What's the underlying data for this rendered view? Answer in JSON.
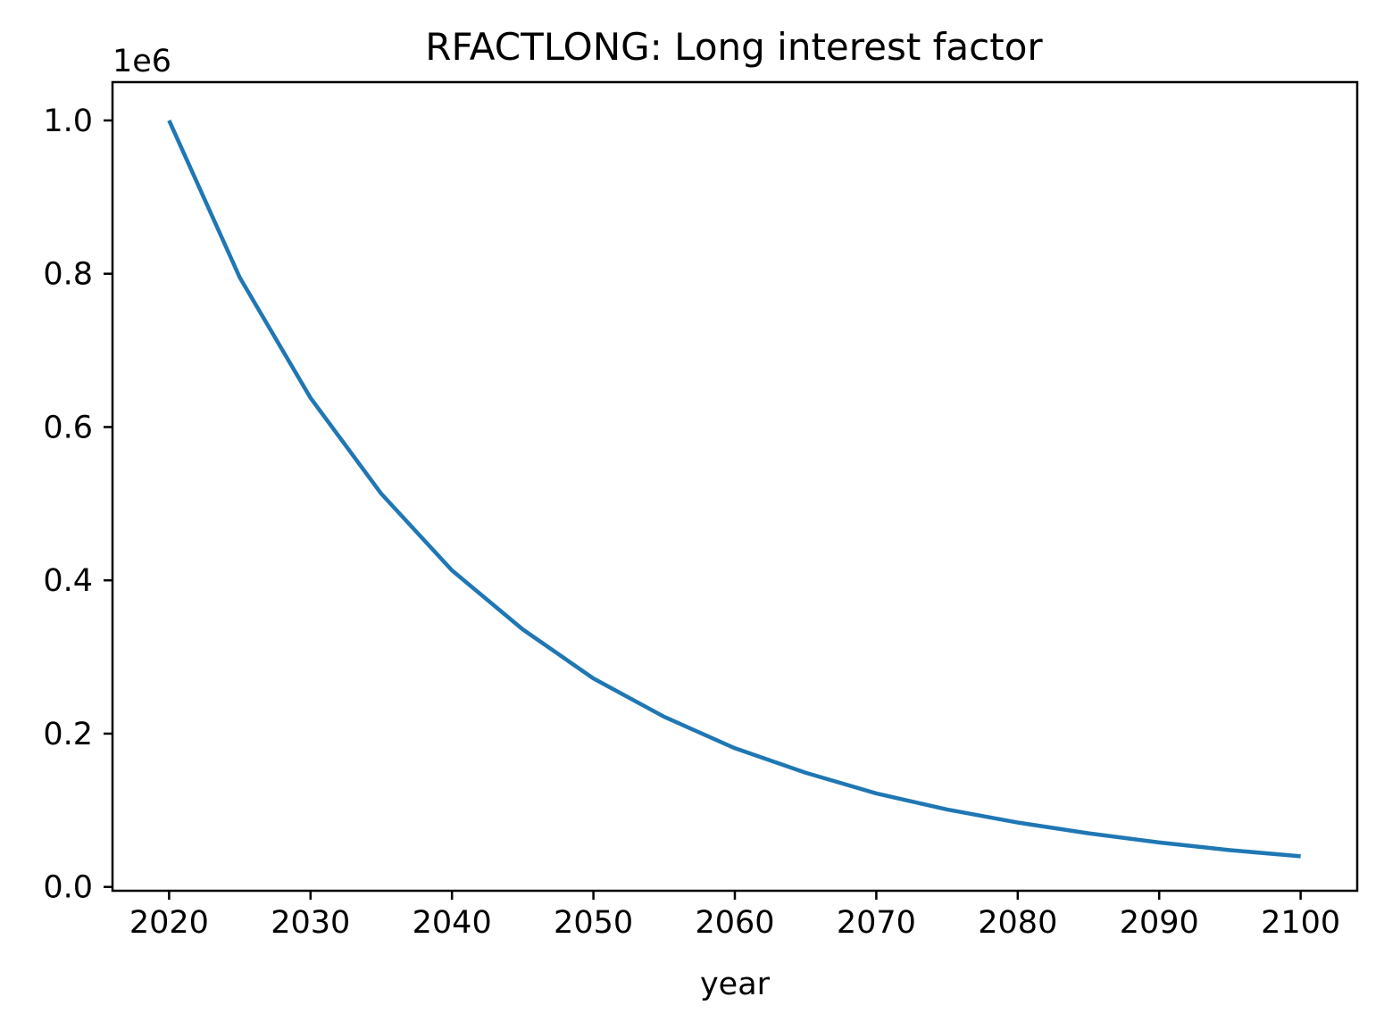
{
  "chart_data": {
    "type": "line",
    "title": "RFACTLONG: Long interest factor",
    "xlabel": "year",
    "ylabel": "",
    "y_offset_label": "1e6",
    "xlim": [
      2016,
      2104
    ],
    "ylim": [
      -0.005,
      1.05
    ],
    "y_scale_factor": 1000000,
    "x_ticks": [
      2020,
      2030,
      2040,
      2050,
      2060,
      2070,
      2080,
      2090,
      2100
    ],
    "y_ticks": [
      0.0,
      0.2,
      0.4,
      0.6,
      0.8,
      1.0
    ],
    "y_tick_labels": [
      "0.0",
      "0.2",
      "0.4",
      "0.6",
      "0.8",
      "1.0"
    ],
    "grid": false,
    "legend": "none",
    "series": [
      {
        "color": "#1f77b4",
        "x": [
          2020,
          2025,
          2030,
          2035,
          2040,
          2045,
          2050,
          2055,
          2060,
          2065,
          2070,
          2075,
          2080,
          2085,
          2090,
          2095,
          2100
        ],
        "y": [
          1.0,
          0.795,
          0.638,
          0.513,
          0.413,
          0.336,
          0.272,
          0.222,
          0.181,
          0.149,
          0.122,
          0.101,
          0.084,
          0.07,
          0.058,
          0.048,
          0.04
        ]
      }
    ]
  }
}
